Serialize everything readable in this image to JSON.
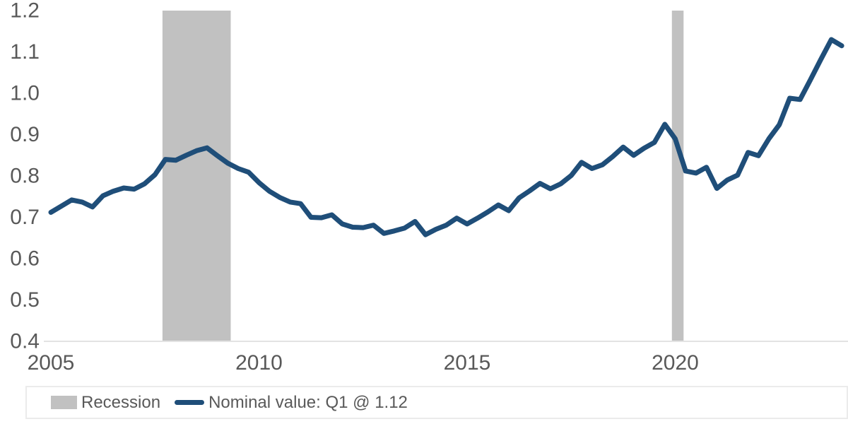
{
  "chart_data": {
    "type": "line",
    "title": "",
    "grid": false,
    "x_axis": {
      "unit": "year",
      "tick_labels": [
        "2005",
        "2010",
        "2015",
        "2020"
      ],
      "tick_years": [
        2005,
        2010,
        2015,
        2020
      ],
      "range_start": 2004.85,
      "range_end": 2024.3
    },
    "y_axis": {
      "min": 0.4,
      "max": 1.2,
      "tick_step": 0.1,
      "tick_labels": [
        "0.4",
        "0.5",
        "0.6",
        "0.7",
        "0.8",
        "0.9",
        "1.0",
        "1.1",
        "1.2"
      ]
    },
    "series": [
      {
        "name": "Nominal value: Q1 @ 1.12",
        "frequency": "quarterly",
        "start_year": 2005,
        "start_quarter": 1,
        "last_point_label": "Q1 @ 1.12",
        "values": [
          0.712,
          0.727,
          0.742,
          0.737,
          0.725,
          0.752,
          0.763,
          0.771,
          0.768,
          0.781,
          0.803,
          0.84,
          0.838,
          0.85,
          0.861,
          0.868,
          0.849,
          0.831,
          0.818,
          0.809,
          0.784,
          0.763,
          0.748,
          0.737,
          0.733,
          0.7,
          0.699,
          0.706,
          0.684,
          0.676,
          0.675,
          0.681,
          0.661,
          0.667,
          0.674,
          0.69,
          0.658,
          0.671,
          0.681,
          0.698,
          0.684,
          0.698,
          0.713,
          0.73,
          0.716,
          0.747,
          0.764,
          0.782,
          0.769,
          0.781,
          0.801,
          0.833,
          0.818,
          0.827,
          0.847,
          0.87,
          0.85,
          0.867,
          0.881,
          0.925,
          0.89,
          0.812,
          0.807,
          0.821,
          0.77,
          0.79,
          0.802,
          0.857,
          0.849,
          0.89,
          0.924,
          0.988,
          0.985,
          1.033,
          1.082,
          1.13,
          1.115
        ]
      }
    ],
    "recession_bands": [
      {
        "start": 2007.68,
        "end": 2009.32
      },
      {
        "start": 2019.92,
        "end": 2020.2
      }
    ],
    "legend": {
      "position": "bottom",
      "items": [
        {
          "label": "Recession",
          "type": "band"
        },
        {
          "label": "Nominal value: Q1 @ 1.12",
          "type": "line"
        }
      ]
    }
  },
  "colors": {
    "line": "#1f4e79",
    "recession_band": "#c1c1c1",
    "axis_text": "#595959",
    "axis_line": "#e3e3e3",
    "legend_border": "#ebebeb",
    "background": "#ffffff"
  }
}
